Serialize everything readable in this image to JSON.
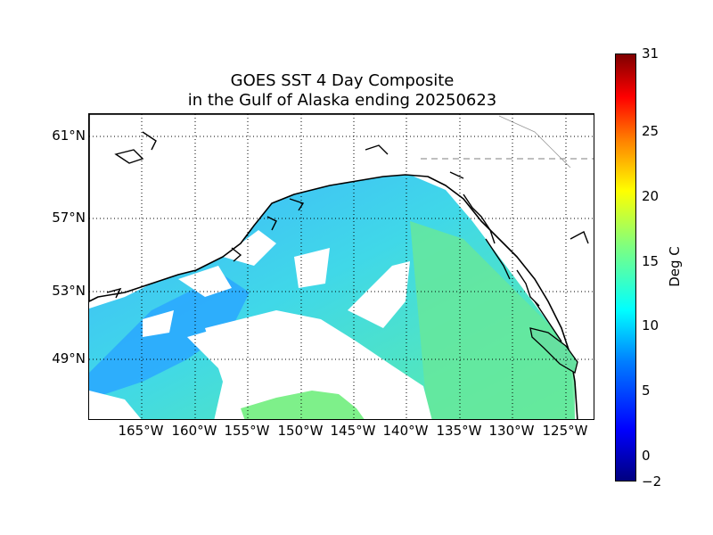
{
  "title": {
    "line1": "GOES SST 4 Day Composite",
    "line2": "in the Gulf of Alaska ending 20250623"
  },
  "map": {
    "lat_labels": [
      "61°N",
      "57°N",
      "53°N",
      "49°N"
    ],
    "lon_labels": [
      "165°W",
      "160°W",
      "155°W",
      "150°W",
      "145°W",
      "140°W",
      "135°W",
      "130°W",
      "125°W"
    ],
    "gridlines": "dotted",
    "colormap": "jet",
    "land_color": "#ffffff",
    "coastline_color": "#000000",
    "cloud_mask_color": "#ffffff"
  },
  "colorbar": {
    "label": "Deg C",
    "min": -2,
    "max": 31,
    "ticks": [
      "31",
      "25",
      "20",
      "15",
      "10",
      "5",
      "0",
      "−2"
    ]
  }
}
